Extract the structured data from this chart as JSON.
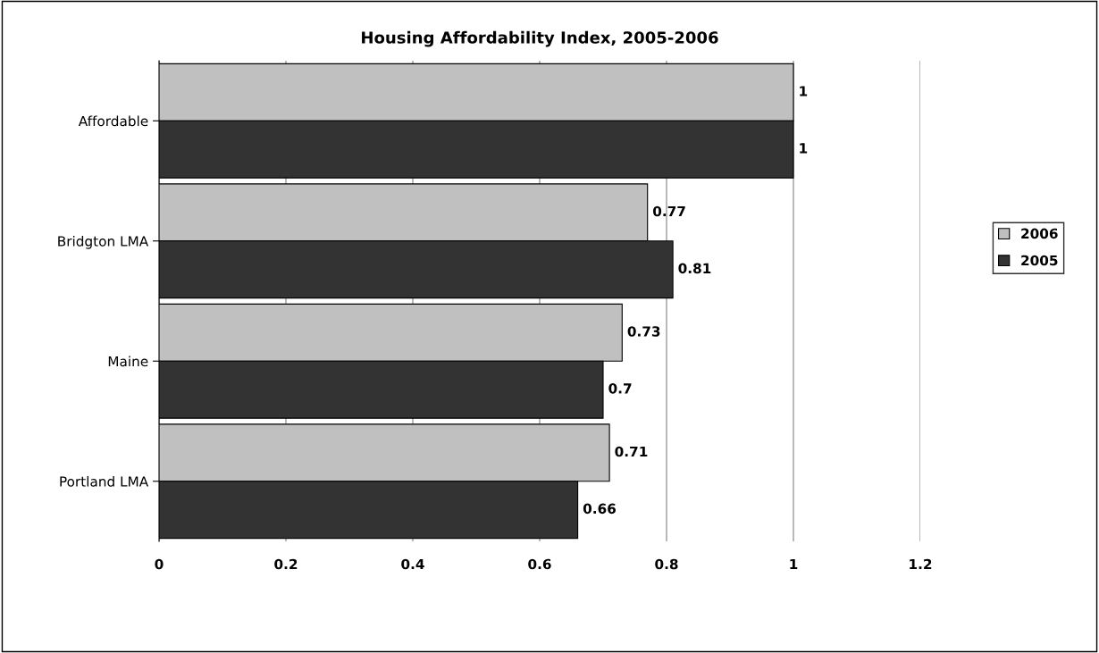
{
  "chart_data": {
    "type": "bar",
    "orientation": "horizontal",
    "title": "Housing Affordability Index, 2005-2006",
    "categories": [
      "Affordable",
      "Bridgton LMA",
      "Maine",
      "Portland LMA"
    ],
    "series": [
      {
        "name": "2006",
        "color": "#c0c0c0",
        "values": [
          1,
          0.77,
          0.73,
          0.71
        ]
      },
      {
        "name": "2005",
        "color": "#333333",
        "values": [
          1,
          0.81,
          0.7,
          0.66
        ]
      }
    ],
    "xlim": [
      0,
      1.2
    ],
    "xticks": [
      0,
      0.2,
      0.4,
      0.6,
      0.8,
      1,
      1.2
    ],
    "grid": "x",
    "legend": "right",
    "data_labels": true
  }
}
